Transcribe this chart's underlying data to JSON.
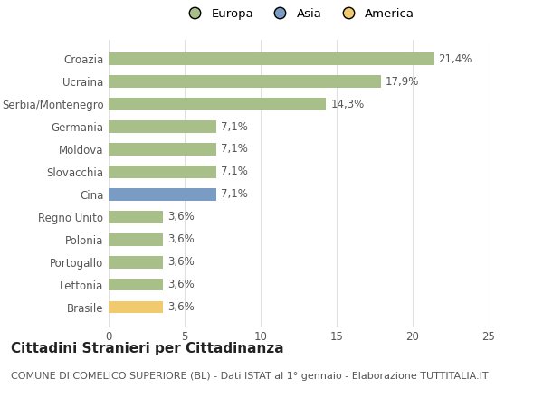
{
  "categories": [
    "Brasile",
    "Lettonia",
    "Portogallo",
    "Polonia",
    "Regno Unito",
    "Cina",
    "Slovacchia",
    "Moldova",
    "Germania",
    "Serbia/Montenegro",
    "Ucraina",
    "Croazia"
  ],
  "values": [
    3.6,
    3.6,
    3.6,
    3.6,
    3.6,
    7.1,
    7.1,
    7.1,
    7.1,
    14.3,
    17.9,
    21.4
  ],
  "bar_colors": [
    "#f2ca6e",
    "#a8bf8a",
    "#a8bf8a",
    "#a8bf8a",
    "#a8bf8a",
    "#7a9cc4",
    "#a8bf8a",
    "#a8bf8a",
    "#a8bf8a",
    "#a8bf8a",
    "#a8bf8a",
    "#a8bf8a"
  ],
  "label_texts": [
    "3,6%",
    "3,6%",
    "3,6%",
    "3,6%",
    "3,6%",
    "7,1%",
    "7,1%",
    "7,1%",
    "7,1%",
    "14,3%",
    "17,9%",
    "21,4%"
  ],
  "legend": [
    {
      "label": "Europa",
      "color": "#a8bf8a"
    },
    {
      "label": "Asia",
      "color": "#7a9cc4"
    },
    {
      "label": "America",
      "color": "#f2ca6e"
    }
  ],
  "xlim": [
    0,
    25
  ],
  "xticks": [
    0,
    5,
    10,
    15,
    20,
    25
  ],
  "title": "Cittadini Stranieri per Cittadinanza",
  "subtitle": "COMUNE DI COMELICO SUPERIORE (BL) - Dati ISTAT al 1° gennaio - Elaborazione TUTTITALIA.IT",
  "background_color": "#ffffff",
  "bar_height": 0.55,
  "grid_color": "#e0e0e0",
  "label_fontsize": 8.5,
  "tick_fontsize": 8.5,
  "title_fontsize": 11,
  "subtitle_fontsize": 8
}
